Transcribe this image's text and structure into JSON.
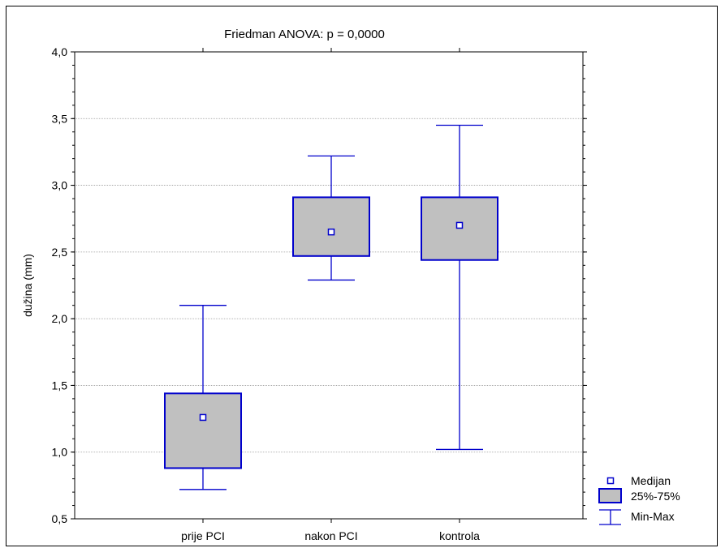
{
  "chart_data": {
    "type": "box",
    "title": "Friedman ANOVA: p = 0,0000",
    "ylabel": "dužina (mm)",
    "xlabel": "",
    "ylim": [
      0.5,
      4.0
    ],
    "yticks": [
      0.5,
      1.0,
      1.5,
      2.0,
      2.5,
      3.0,
      3.5,
      4.0
    ],
    "ytick_labels": [
      "0,5",
      "1,0",
      "1,5",
      "2,0",
      "2,5",
      "3,0",
      "3,5",
      "4,0"
    ],
    "grid": true,
    "legend_position": "bottom-right",
    "categories": [
      "prije PCI",
      "nakon PCI",
      "kontrola"
    ],
    "boxes": [
      {
        "category": "prije PCI",
        "min": 0.72,
        "q1": 0.88,
        "median": 1.26,
        "q3": 1.44,
        "max": 2.1
      },
      {
        "category": "nakon PCI",
        "min": 2.29,
        "q1": 2.47,
        "median": 2.65,
        "q3": 2.91,
        "max": 3.22
      },
      {
        "category": "kontrola",
        "min": 1.02,
        "q1": 2.44,
        "median": 2.7,
        "q3": 2.91,
        "max": 3.45
      }
    ],
    "legend": {
      "median": "Medijan",
      "box": "25%-75%",
      "whisker": "Min-Max"
    },
    "colors": {
      "line": "#0000cc",
      "box_fill": "#c0c0c0",
      "grid": "#9a9a9a"
    }
  }
}
